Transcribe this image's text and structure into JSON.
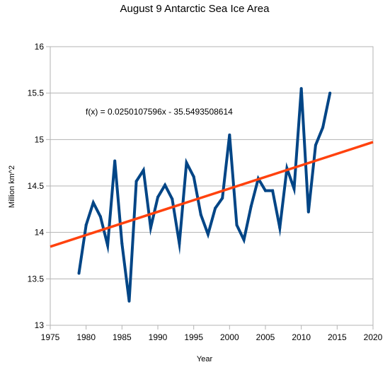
{
  "chart_data": {
    "type": "line",
    "title": "August 9 Antarctic Sea Ice Area",
    "xlabel": "Year",
    "ylabel": "Million km^2",
    "xlim": [
      1975,
      2020
    ],
    "ylim": [
      13,
      16
    ],
    "xticks": [
      1975,
      1980,
      1985,
      1990,
      1995,
      2000,
      2005,
      2010,
      2015,
      2020
    ],
    "yticks": [
      13,
      13.5,
      14,
      14.5,
      15,
      15.5,
      16
    ],
    "grid": "horizontal",
    "series": [
      {
        "color": "#004586",
        "x": [
          1979,
          1980,
          1981,
          1982,
          1983,
          1984,
          1985,
          1986,
          1987,
          1988,
          1989,
          1990,
          1991,
          1992,
          1993,
          1994,
          1995,
          1996,
          1997,
          1998,
          1999,
          2000,
          2001,
          2002,
          2003,
          2004,
          2005,
          2006,
          2007,
          2008,
          2009,
          2010,
          2011,
          2012,
          2013,
          2014
        ],
        "values": [
          13.56,
          14.08,
          14.32,
          14.17,
          13.86,
          14.77,
          13.88,
          13.26,
          14.55,
          14.67,
          14.05,
          14.38,
          14.51,
          14.36,
          13.88,
          14.75,
          14.6,
          14.19,
          13.98,
          14.26,
          14.37,
          15.05,
          14.08,
          13.92,
          14.28,
          14.58,
          14.45,
          14.45,
          14.05,
          14.69,
          14.47,
          15.55,
          14.22,
          14.94,
          15.13,
          15.5
        ]
      }
    ],
    "trendline": {
      "color": "#ff420e",
      "slope": 0.0250107596,
      "intercept": -35.5493508614,
      "label": "f(x) = 0.0250107596x - 35.5493508614"
    }
  }
}
